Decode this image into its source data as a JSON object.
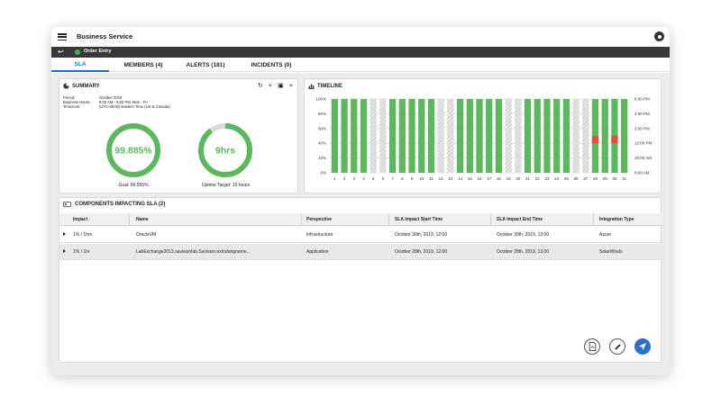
{
  "app": {
    "title": "Business Service"
  },
  "breadcrumb": {
    "label": "Order Entry",
    "status_color": "#4caf50"
  },
  "tabs": [
    {
      "label": "SLA",
      "active": true
    },
    {
      "label": "MEMBERS (4)",
      "active": false
    },
    {
      "label": "ALERTS (181)",
      "active": false
    },
    {
      "label": "INCIDENTS (0)",
      "active": false
    }
  ],
  "summary": {
    "title": "SUMMARY",
    "controls": [
      "refresh-icon",
      "first-page-icon",
      "calendar-icon",
      "last-page-icon"
    ],
    "meta": [
      {
        "key": "Period:",
        "value": "October 2019"
      },
      {
        "key": "Business Hours:",
        "value": "8:00 AM - 6:00 PM, Mon - Fri"
      },
      {
        "key": "Timezone:",
        "value": "(UTC-05:00) Eastern Time (US & Canada)"
      }
    ],
    "sla": {
      "value": "99.885%",
      "fraction": 0.99885,
      "goal": "Goal: 99.555%",
      "color": "#5cb85c"
    },
    "uptime": {
      "value": "9hrs",
      "fraction": 0.9,
      "target": "Uptime Target: 10 hours",
      "color": "#5cb85c"
    }
  },
  "timeline": {
    "title": "TIMELINE",
    "chart_data": {
      "type": "bar",
      "categories": [
        "1",
        "2",
        "3",
        "4",
        "5",
        "6",
        "7",
        "8",
        "9",
        "10",
        "11",
        "12",
        "13",
        "14",
        "15",
        "16",
        "17",
        "18",
        "19",
        "20",
        "21",
        "22",
        "23",
        "24",
        "25",
        "26",
        "27",
        "28",
        "29",
        "30",
        "31"
      ],
      "status": [
        "up",
        "up",
        "up",
        "up",
        "weekend",
        "weekend",
        "up",
        "up",
        "up",
        "up",
        "up",
        "weekend",
        "weekend",
        "up",
        "up",
        "up",
        "up",
        "up",
        "weekend",
        "weekend",
        "up",
        "up",
        "up",
        "up",
        "up",
        "weekend",
        "weekend",
        "up",
        "up",
        "up",
        "up"
      ],
      "values": [
        100,
        100,
        100,
        100,
        100,
        100,
        100,
        100,
        100,
        100,
        100,
        100,
        100,
        100,
        100,
        100,
        100,
        100,
        100,
        100,
        100,
        100,
        100,
        100,
        100,
        100,
        100,
        100,
        100,
        100,
        100
      ],
      "incidents": [
        {
          "day": "28",
          "from_hour": 12,
          "to_hour": 13
        },
        {
          "day": "30",
          "from_hour": 12,
          "to_hour": 13
        }
      ],
      "y_left_ticks": [
        "100%",
        "80%",
        "60%",
        "40%",
        "20%",
        "0%"
      ],
      "y_right_ticks": [
        "6:00 PM",
        "4:00 PM",
        "2:00 PM",
        "12:00 PM",
        "10:00 AM",
        "8:00 AM"
      ],
      "ylim": [
        0,
        100
      ],
      "colors": {
        "up": "#5cb85c",
        "incident": "#e74c3c",
        "weekend": "#d6d6d6"
      }
    }
  },
  "components": {
    "title": "COMPONENTS IMPACTING SLA (2)",
    "columns": [
      "Impact",
      "Name",
      "Perspective",
      "SLA Impact Start Time",
      "SLA Impact End Time",
      "Integration Type"
    ],
    "rows": [
      {
        "impact": "1% / 1hrs",
        "name": "OracleVM",
        "perspective": "Infrastructure",
        "start": "October 30th, 2019, 12:00",
        "end": "October 30th, 2019, 13:00",
        "integration": "Azure"
      },
      {
        "impact": "1% / 1hr",
        "name": "LabExchange2013.savisionlab.Savision.extralongname...",
        "perspective": "Application",
        "start": "October 28th, 2019, 12:00",
        "end": "October 28th, 2019, 13:00",
        "integration": "SolarWinds"
      }
    ]
  },
  "actions": [
    "pdf-icon",
    "edit-icon",
    "launch-icon"
  ]
}
